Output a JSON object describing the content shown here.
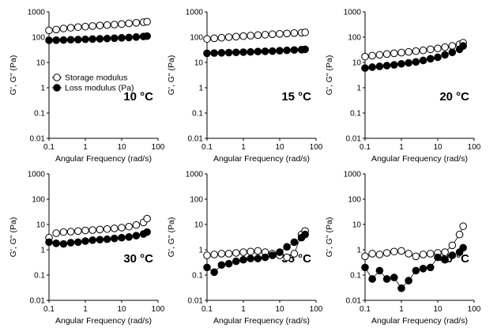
{
  "figure": {
    "background": "#ffffff",
    "legend_entries": [
      "Storage modulus",
      "Loss modulus (Pa)"
    ],
    "series_colors": {
      "storage": "#ffffff",
      "loss": "#000000",
      "stroke": "#000000"
    }
  },
  "chart_data": [
    {
      "type": "scatter",
      "panel": "10C",
      "annotation": "10 °C",
      "xlabel": "Angular Frequency (rad/s)",
      "ylabel": "G', G\" (Pa)",
      "xscale": "log",
      "yscale": "log",
      "xlim": [
        0.1,
        100
      ],
      "ylim": [
        0.01,
        1000
      ],
      "xticks": [
        "0.1",
        "1",
        "10",
        "100"
      ],
      "yticks": [
        "0.01",
        "0.1",
        "1",
        "10",
        "100",
        "1000"
      ],
      "legend": "upper-left",
      "series": [
        {
          "name": "Storage modulus",
          "marker": "open-circle",
          "x": [
            0.1,
            0.158,
            0.251,
            0.398,
            0.631,
            1,
            1.58,
            2.51,
            3.98,
            6.31,
            10,
            15.8,
            25.1,
            39.8,
            50
          ],
          "y": [
            185,
            200,
            220,
            235,
            250,
            260,
            275,
            290,
            300,
            315,
            330,
            350,
            370,
            390,
            410
          ]
        },
        {
          "name": "Loss modulus (Pa)",
          "marker": "filled-circle",
          "x": [
            0.1,
            0.158,
            0.251,
            0.398,
            0.631,
            1,
            1.58,
            2.51,
            3.98,
            6.31,
            10,
            15.8,
            25.1,
            39.8,
            50
          ],
          "y": [
            75,
            76,
            77,
            79,
            80,
            82,
            84,
            86,
            88,
            91,
            94,
            97,
            101,
            106,
            110
          ]
        }
      ]
    },
    {
      "type": "scatter",
      "panel": "15C",
      "annotation": "15 °C",
      "xlabel": "Angular Frequency (rad/s)",
      "ylabel": "G', G\" (Pa)",
      "xscale": "log",
      "yscale": "log",
      "xlim": [
        0.1,
        100
      ],
      "ylim": [
        0.01,
        1000
      ],
      "xticks": [
        "0.1",
        "1",
        "10",
        "100"
      ],
      "yticks": [
        "0.01",
        "0.1",
        "1",
        "10",
        "100",
        "1000"
      ],
      "series": [
        {
          "name": "Storage modulus",
          "marker": "open-circle",
          "x": [
            0.1,
            0.158,
            0.251,
            0.398,
            0.631,
            1,
            1.58,
            2.51,
            3.98,
            6.31,
            10,
            15.8,
            25.1,
            39.8,
            50
          ],
          "y": [
            85,
            90,
            95,
            100,
            105,
            110,
            115,
            120,
            125,
            130,
            135,
            140,
            145,
            150,
            155
          ]
        },
        {
          "name": "Loss modulus (Pa)",
          "marker": "filled-circle",
          "x": [
            0.1,
            0.158,
            0.251,
            0.398,
            0.631,
            1,
            1.58,
            2.51,
            3.98,
            6.31,
            10,
            15.8,
            25.1,
            39.8,
            50
          ],
          "y": [
            23,
            23.5,
            24,
            24.5,
            25,
            25.5,
            26,
            27,
            27.5,
            28,
            29,
            30,
            31,
            32,
            33
          ]
        }
      ]
    },
    {
      "type": "scatter",
      "panel": "20C",
      "annotation": "20 °C",
      "xlabel": "Angular Frequency (rad/s)",
      "ylabel": "G', G\" (Pa)",
      "xscale": "log",
      "yscale": "log",
      "xlim": [
        0.1,
        100
      ],
      "ylim": [
        0.01,
        1000
      ],
      "xticks": [
        "0.1",
        "1",
        "10",
        "100"
      ],
      "yticks": [
        "0.01",
        "0.1",
        "1",
        "10",
        "100",
        "1000"
      ],
      "series": [
        {
          "name": "Storage modulus",
          "marker": "open-circle",
          "x": [
            0.1,
            0.158,
            0.251,
            0.398,
            0.631,
            1,
            1.58,
            2.51,
            3.98,
            6.31,
            10,
            15.8,
            25.1,
            39.8,
            50
          ],
          "y": [
            17,
            18.5,
            20,
            21.5,
            23,
            24.5,
            26,
            28,
            30,
            33,
            36,
            40,
            45,
            52,
            60
          ]
        },
        {
          "name": "Loss modulus (Pa)",
          "marker": "filled-circle",
          "x": [
            0.1,
            0.158,
            0.251,
            0.398,
            0.631,
            1,
            1.58,
            2.51,
            3.98,
            6.31,
            10,
            15.8,
            25.1,
            39.8,
            50
          ],
          "y": [
            6,
            6.5,
            7,
            7.5,
            8,
            8.8,
            9.6,
            10.5,
            12,
            14,
            16,
            20,
            25,
            33,
            45
          ]
        }
      ]
    },
    {
      "type": "scatter",
      "panel": "30C",
      "annotation": "30 °C",
      "xlabel": "Angular Frequency (rad/s)",
      "ylabel": "G', G\" (Pa)",
      "xscale": "log",
      "yscale": "log",
      "xlim": [
        0.1,
        100
      ],
      "ylim": [
        0.01,
        1000
      ],
      "xticks": [
        "0.1",
        "1",
        "10",
        "100"
      ],
      "yticks": [
        "0.01",
        "0.1",
        "1",
        "10",
        "100",
        "1000"
      ],
      "series": [
        {
          "name": "Storage modulus",
          "marker": "open-circle",
          "x": [
            0.1,
            0.158,
            0.251,
            0.398,
            0.631,
            1,
            1.58,
            2.51,
            3.98,
            6.31,
            10,
            15.8,
            25.1,
            39.8,
            50
          ],
          "y": [
            3,
            4.5,
            5,
            5.2,
            5.5,
            5.8,
            6,
            6.3,
            6.6,
            7,
            7.5,
            8.2,
            9.5,
            12,
            17
          ]
        },
        {
          "name": "Loss modulus (Pa)",
          "marker": "filled-circle",
          "x": [
            0.1,
            0.158,
            0.251,
            0.398,
            0.631,
            1,
            1.58,
            2.51,
            3.98,
            6.31,
            10,
            15.8,
            25.1,
            39.8,
            50
          ],
          "y": [
            2,
            1.8,
            1.7,
            1.9,
            2,
            2.2,
            2.4,
            2.5,
            2.6,
            2.8,
            3,
            3.2,
            3.6,
            4.2,
            5
          ]
        }
      ]
    },
    {
      "type": "scatter",
      "panel": "35C",
      "annotation": "35 °C",
      "xlabel": "Angular Frequency (rad/s)",
      "ylabel": "G', G\" (Pa)",
      "xscale": "log",
      "yscale": "log",
      "xlim": [
        0.1,
        100
      ],
      "ylim": [
        0.01,
        1000
      ],
      "xticks": [
        "0.1",
        "1",
        "10",
        "100"
      ],
      "yticks": [
        "0.01",
        "0.1",
        "1",
        "10",
        "100",
        "1000"
      ],
      "series": [
        {
          "name": "Storage modulus",
          "marker": "open-circle",
          "connected": true,
          "x": [
            0.1,
            0.158,
            0.251,
            0.398,
            0.631,
            1,
            1.58,
            2.51,
            3.98,
            6.31,
            10,
            15.8,
            25.1,
            39.8,
            50
          ],
          "y": [
            0.6,
            0.65,
            0.7,
            0.7,
            0.75,
            0.8,
            0.85,
            0.9,
            0.8,
            0.7,
            0.6,
            0.5,
            0.7,
            4,
            5.5
          ]
        },
        {
          "name": "Loss modulus (Pa)",
          "marker": "filled-circle",
          "connected": true,
          "x": [
            0.1,
            0.158,
            0.251,
            0.398,
            0.631,
            1,
            1.58,
            2.51,
            3.98,
            6.31,
            10,
            15.8,
            25.1,
            39.8,
            50
          ],
          "y": [
            0.2,
            0.13,
            0.25,
            0.28,
            0.35,
            0.4,
            0.45,
            0.45,
            0.5,
            0.6,
            0.8,
            1.3,
            2,
            3,
            4
          ]
        }
      ]
    },
    {
      "type": "scatter",
      "panel": "40C",
      "annotation": "40 °C",
      "xlabel": "Angular Frequency (rad/s)",
      "ylabel": "G', G\" (Pa)",
      "xscale": "log",
      "yscale": "log",
      "xlim": [
        0.1,
        100
      ],
      "ylim": [
        0.01,
        1000
      ],
      "xticks": [
        "0.1",
        "1",
        "10",
        "100"
      ],
      "yticks": [
        "0.01",
        "0.1",
        "1",
        "10",
        "100",
        "1000"
      ],
      "series": [
        {
          "name": "Storage modulus",
          "marker": "open-circle",
          "connected": true,
          "x": [
            0.1,
            0.158,
            0.251,
            0.398,
            0.631,
            1,
            1.58,
            2.51,
            3.98,
            6.31,
            10,
            15.8,
            25.1,
            39.8,
            50
          ],
          "y": [
            0.55,
            0.7,
            0.65,
            0.75,
            0.85,
            0.9,
            0.7,
            0.55,
            0.65,
            0.7,
            0.75,
            0.8,
            1.5,
            4,
            8.5
          ]
        },
        {
          "name": "Loss modulus (Pa)",
          "marker": "filled-circle",
          "connected": true,
          "x": [
            0.1,
            0.158,
            0.251,
            0.398,
            0.631,
            1,
            1.58,
            2.51,
            3.98,
            6.31,
            10,
            15.8,
            25.1,
            39.8,
            50
          ],
          "y": [
            0.2,
            0.07,
            0.15,
            0.07,
            0.08,
            0.03,
            0.06,
            0.15,
            0.18,
            0.2,
            0.5,
            0.4,
            0.6,
            0.8,
            1.2
          ]
        }
      ]
    }
  ]
}
